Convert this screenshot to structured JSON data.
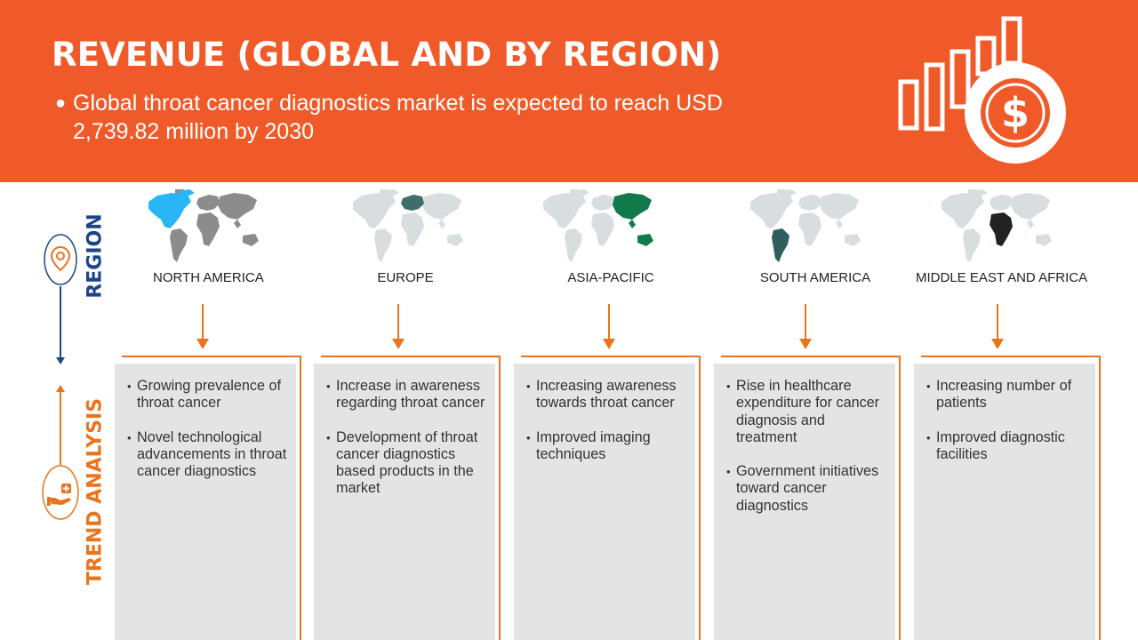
{
  "header": {
    "title": "REVENUE (GLOBAL AND BY REGION)",
    "bullet": "Global throat cancer diagnostics market is expected to reach USD 2,739.82 million by 2030",
    "icon": "revenue-growth-dollar-icon"
  },
  "sidebar": {
    "region_label": "REGION",
    "region_icon": "location-pin-icon",
    "trend_label": "TREND ANALYSIS",
    "trend_icon": "hand-heart-icon"
  },
  "colors": {
    "banner": "#f05a28",
    "accent_orange": "#e8741e",
    "accent_blue": "#1c4587",
    "panel_gray": "#e4e4e4",
    "map_gray": "#d8dde0"
  },
  "regions": [
    {
      "name": "NORTH AMERICA",
      "highlight_color": "#29b6f6",
      "trends": [
        "Growing prevalence of throat cancer",
        "Novel technological advancements in throat cancer diagnostics"
      ]
    },
    {
      "name": "EUROPE",
      "highlight_color": "#3d6e6a",
      "trends": [
        "Increase in awareness regarding throat cancer",
        "Development of throat cancer diagnostics based products in the market"
      ]
    },
    {
      "name": "ASIA-PACIFIC",
      "highlight_color": "#117a4a",
      "trends": [
        "Increasing awareness towards throat cancer",
        "Improved imaging techniques"
      ]
    },
    {
      "name": "SOUTH AMERICA",
      "highlight_color": "#2e5e5e",
      "trends": [
        "Rise in healthcare expenditure for cancer diagnosis and treatment",
        "Government initiatives toward cancer diagnostics"
      ]
    },
    {
      "name": "MIDDLE EAST AND AFRICA",
      "highlight_color": "#222222",
      "trends": [
        "Increasing number of patients",
        "Improved diagnostic facilities"
      ]
    }
  ]
}
